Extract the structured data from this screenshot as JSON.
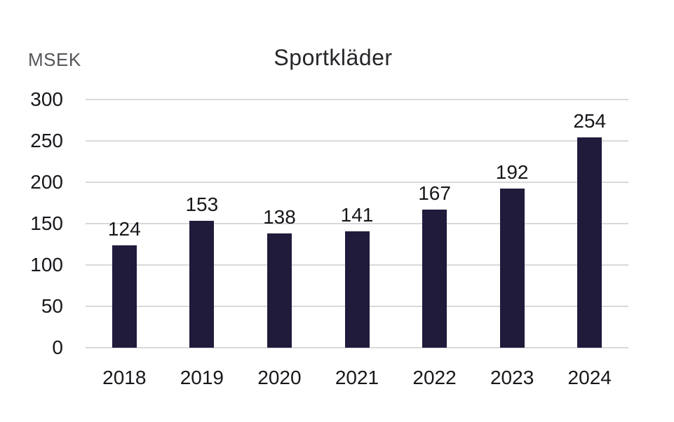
{
  "chart_data": {
    "type": "bar",
    "title": "Sportkläder",
    "ylabel": "MSEK",
    "xlabel": "",
    "categories": [
      "2018",
      "2019",
      "2020",
      "2021",
      "2022",
      "2023",
      "2024"
    ],
    "values": [
      124,
      153,
      138,
      141,
      167,
      192,
      254
    ],
    "yticks": [
      0,
      50,
      100,
      150,
      200,
      250,
      300
    ],
    "ylim": [
      0,
      300
    ],
    "grid": "horizontal",
    "legend": "none",
    "value_labels": "above-bars",
    "colors": {
      "bar": "#201b3b",
      "gridline": "#d9d9d9",
      "tick_text": "#17171c",
      "title_text": "#26262b",
      "unit_text": "#55555a",
      "background": "#ffffff"
    }
  }
}
